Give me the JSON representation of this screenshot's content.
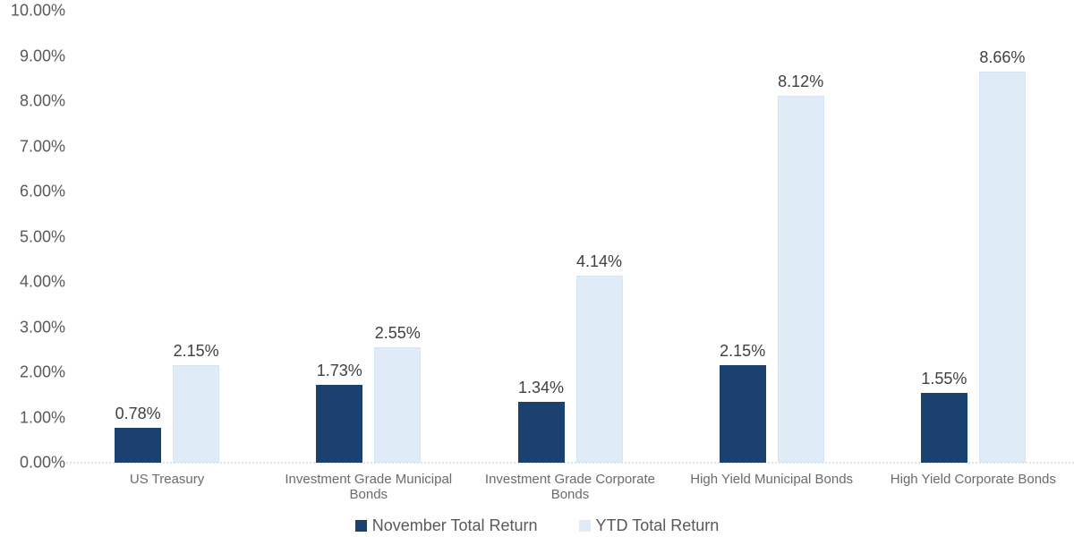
{
  "chart_data": {
    "type": "bar",
    "title": "",
    "categories": [
      "US Treasury",
      "Investment Grade Municipal Bonds",
      "Investment Grade Corporate Bonds",
      "High Yield Municipal Bonds",
      "High Yield Corporate Bonds"
    ],
    "series": [
      {
        "name": "November Total Return",
        "color": "#1a4170",
        "values": [
          0.78,
          1.73,
          1.34,
          2.15,
          1.55
        ],
        "data_labels": [
          "0.78%",
          "1.73%",
          "1.34%",
          "2.15%",
          "1.55%"
        ]
      },
      {
        "name": "YTD Total Return",
        "color": "#dfecf8",
        "values": [
          2.15,
          2.55,
          4.14,
          8.12,
          8.66
        ],
        "data_labels": [
          "2.15%",
          "2.55%",
          "4.14%",
          "8.12%",
          "8.66%"
        ]
      }
    ],
    "y_axis": {
      "min": 0,
      "max": 10,
      "step": 1,
      "tick_labels": [
        "0.00%",
        "1.00%",
        "2.00%",
        "3.00%",
        "4.00%",
        "5.00%",
        "6.00%",
        "7.00%",
        "8.00%",
        "9.00%",
        "10.00%"
      ]
    },
    "xlabel": "",
    "ylabel": "",
    "grid": false,
    "legend_position": "bottom",
    "colors": {
      "axis_line": "#d8e5f1",
      "y_tick_text": "#595959",
      "data_label_text": "#3f3f3f",
      "category_text": "#6b6b6b",
      "legend_text": "#595959",
      "background": "#ffffff"
    }
  }
}
